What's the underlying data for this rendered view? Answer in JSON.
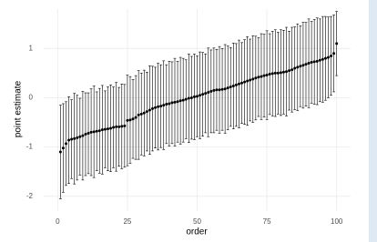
{
  "chart_data": {
    "type": "errorbar",
    "x_label": "order",
    "y_label": "point estimate",
    "x": [
      1,
      2,
      3,
      4,
      5,
      6,
      7,
      8,
      9,
      10,
      11,
      12,
      13,
      14,
      15,
      16,
      17,
      18,
      19,
      20,
      21,
      22,
      23,
      24,
      25,
      26,
      27,
      28,
      29,
      30,
      31,
      32,
      33,
      34,
      35,
      36,
      37,
      38,
      39,
      40,
      41,
      42,
      43,
      44,
      45,
      46,
      47,
      48,
      49,
      50,
      51,
      52,
      53,
      54,
      55,
      56,
      57,
      58,
      59,
      60,
      61,
      62,
      63,
      64,
      65,
      66,
      67,
      68,
      69,
      70,
      71,
      72,
      73,
      74,
      75,
      76,
      77,
      78,
      79,
      80,
      81,
      82,
      83,
      84,
      85,
      86,
      87,
      88,
      89,
      90,
      91,
      92,
      93,
      94,
      95,
      96,
      97,
      98,
      99,
      100
    ],
    "values": [
      -1.1,
      -1.02,
      -0.93,
      -0.86,
      -0.84,
      -0.83,
      -0.81,
      -0.79,
      -0.77,
      -0.74,
      -0.72,
      -0.7,
      -0.69,
      -0.68,
      -0.67,
      -0.65,
      -0.64,
      -0.63,
      -0.62,
      -0.6,
      -0.59,
      -0.59,
      -0.58,
      -0.57,
      -0.46,
      -0.45,
      -0.43,
      -0.4,
      -0.35,
      -0.33,
      -0.31,
      -0.28,
      -0.25,
      -0.22,
      -0.2,
      -0.18,
      -0.17,
      -0.15,
      -0.13,
      -0.12,
      -0.1,
      -0.09,
      -0.08,
      -0.06,
      -0.05,
      -0.03,
      -0.01,
      0.0,
      0.02,
      0.03,
      0.05,
      0.07,
      0.09,
      0.11,
      0.13,
      0.15,
      0.16,
      0.16,
      0.17,
      0.18,
      0.2,
      0.22,
      0.24,
      0.26,
      0.28,
      0.3,
      0.32,
      0.34,
      0.36,
      0.38,
      0.4,
      0.42,
      0.43,
      0.45,
      0.46,
      0.48,
      0.49,
      0.5,
      0.5,
      0.51,
      0.52,
      0.53,
      0.55,
      0.57,
      0.6,
      0.62,
      0.64,
      0.66,
      0.68,
      0.7,
      0.72,
      0.73,
      0.74,
      0.76,
      0.78,
      0.8,
      0.82,
      0.85,
      0.9,
      1.1
    ],
    "errors": [
      0.95,
      0.9,
      0.85,
      0.88,
      0.8,
      0.92,
      0.86,
      0.78,
      0.9,
      0.84,
      0.82,
      0.88,
      0.93,
      0.8,
      0.86,
      0.9,
      0.78,
      0.85,
      0.88,
      0.82,
      0.9,
      0.8,
      0.86,
      0.84,
      0.92,
      0.88,
      0.8,
      0.85,
      0.9,
      0.83,
      0.87,
      0.8,
      0.9,
      0.86,
      0.82,
      0.88,
      0.84,
      0.9,
      0.8,
      0.86,
      0.83,
      0.89,
      0.82,
      0.88,
      0.85,
      0.8,
      0.9,
      0.84,
      0.87,
      0.82,
      0.88,
      0.85,
      0.8,
      0.9,
      0.84,
      0.86,
      0.82,
      0.88,
      0.83,
      0.9,
      0.85,
      0.8,
      0.87,
      0.84,
      0.89,
      0.82,
      0.86,
      0.9,
      0.83,
      0.88,
      0.85,
      0.8,
      0.87,
      0.84,
      0.9,
      0.82,
      0.86,
      0.88,
      0.83,
      0.87,
      0.85,
      0.9,
      0.8,
      0.86,
      0.84,
      0.88,
      0.82,
      0.87,
      0.85,
      0.9,
      0.83,
      0.86,
      0.88,
      0.84,
      0.87,
      0.85,
      0.82,
      0.8,
      0.78,
      0.65
    ],
    "color": "#000000",
    "xlim": [
      -5,
      105
    ],
    "ylim": [
      -2.3,
      1.8
    ],
    "xticks": [
      0,
      25,
      50,
      75,
      100
    ],
    "yticks": [
      -2,
      -1,
      0,
      1
    ],
    "grid": true
  }
}
